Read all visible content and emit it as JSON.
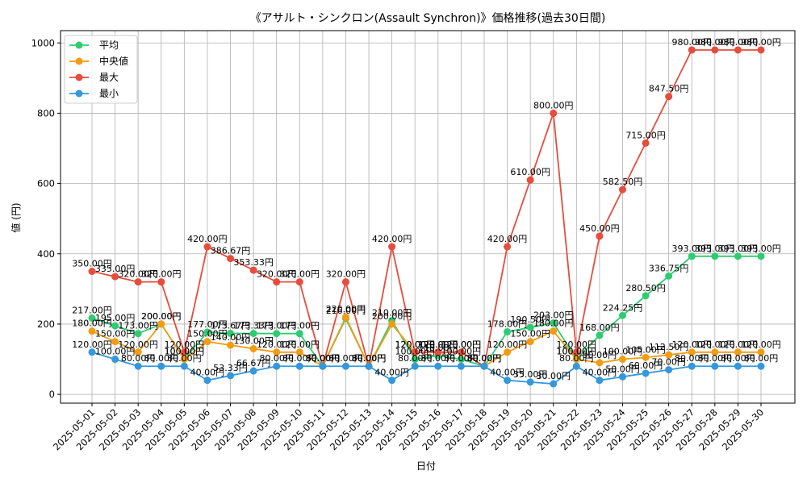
{
  "chart_data": {
    "type": "line",
    "title": "《アサルト・シンクロン(Assault Synchron)》価格推移(過去30日間)",
    "xlabel": "日付",
    "ylabel": "値 (円)",
    "ylim": [
      -25,
      1035
    ],
    "yticks": [
      0,
      200,
      400,
      600,
      800,
      1000
    ],
    "grid": true,
    "legend_position": "top-left",
    "label_suffix": "円",
    "categories": [
      "2025-05-01",
      "2025-05-02",
      "2025-05-03",
      "2025-05-04",
      "2025-05-05",
      "2025-05-06",
      "2025-05-07",
      "2025-05-08",
      "2025-05-09",
      "2025-05-10",
      "2025-05-11",
      "2025-05-12",
      "2025-05-13",
      "2025-05-14",
      "2025-05-15",
      "2025-05-16",
      "2025-05-17",
      "2025-05-18",
      "2025-05-19",
      "2025-05-20",
      "2025-05-21",
      "2025-05-22",
      "2025-05-23",
      "2025-05-24",
      "2025-05-25",
      "2025-05-26",
      "2025-05-27",
      "2025-05-28",
      "2025-05-29",
      "2025-05-30"
    ],
    "series": [
      {
        "name": "平均",
        "color": "#2ecc71",
        "values": [
          217.0,
          195.0,
          173.0,
          200.0,
          100.0,
          177.0,
          173.67,
          173.33,
          173.0,
          173.0,
          80.0,
          216.0,
          80.0,
          210.0,
          100.0,
          110.0,
          100.0,
          80.0,
          178.0,
          190.5,
          203.0,
          100.0,
          168.0,
          224.25,
          280.5,
          336.75,
          393.0,
          393.0,
          393.0,
          393.0
        ]
      },
      {
        "name": "中央値",
        "color": "#f39c12",
        "values": [
          180.0,
          150.0,
          120.0,
          200.0,
          100.0,
          150.0,
          140.0,
          130.0,
          120.0,
          120.0,
          80.0,
          220.0,
          80.0,
          200.0,
          120.0,
          120.0,
          120.0,
          80.0,
          120.0,
          150.0,
          180.0,
          100.0,
          90.0,
          100.0,
          105.0,
          112.5,
          120.0,
          120.0,
          120.0,
          120.0
        ]
      },
      {
        "name": "最大",
        "color": "#e74c3c",
        "values": [
          350.0,
          335.0,
          320.0,
          320.0,
          120.0,
          420.0,
          386.67,
          353.33,
          320.0,
          320.0,
          80.0,
          320.0,
          80.0,
          420.0,
          120.0,
          120.0,
          120.0,
          80.0,
          420.0,
          610.0,
          800.0,
          120.0,
          450.0,
          582.5,
          715.0,
          847.5,
          980.0,
          980.0,
          980.0,
          980.0
        ]
      },
      {
        "name": "最小",
        "color": "#3498db",
        "values": [
          120.0,
          100.0,
          80.0,
          80.0,
          80.0,
          40.0,
          53.33,
          66.67,
          80.0,
          80.0,
          80.0,
          80.0,
          80.0,
          40.0,
          80.0,
          80.0,
          80.0,
          80.0,
          40.0,
          35.0,
          30.0,
          80.0,
          40.0,
          50.0,
          60.0,
          70.0,
          80.0,
          80.0,
          80.0,
          80.0
        ]
      }
    ]
  }
}
